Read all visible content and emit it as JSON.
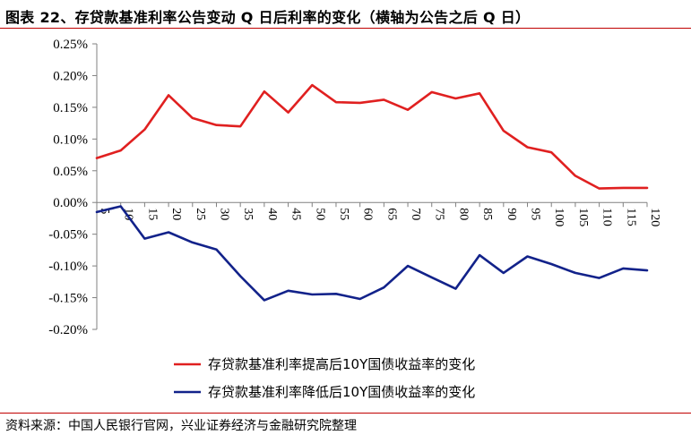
{
  "title": "图表 22、存贷款基准利率公告变动 Q 日后利率的变化（横轴为公告之后 Q 日）",
  "source": "资料来源：中国人民银行官网，兴业证券经济与金融研究院整理",
  "colors": {
    "raise": "#e02020",
    "cut": "#12228a",
    "rule": "#c00000"
  },
  "chart_data": {
    "type": "line",
    "x": [
      5,
      10,
      15,
      20,
      25,
      30,
      35,
      40,
      45,
      50,
      55,
      60,
      65,
      70,
      75,
      80,
      85,
      90,
      95,
      100,
      105,
      110,
      115,
      120
    ],
    "ylim": [
      -0.2,
      0.25
    ],
    "yticks": [
      0.25,
      0.2,
      0.15,
      0.1,
      0.05,
      0.0,
      -0.05,
      -0.1,
      -0.15,
      -0.2
    ],
    "ytick_labels": [
      "0.25%",
      "0.20%",
      "0.15%",
      "0.10%",
      "0.05%",
      "0.00%",
      "-0.05%",
      "-0.10%",
      "-0.15%",
      "-0.20%"
    ],
    "y_unit": "%",
    "legend_position": "bottom-center",
    "series": [
      {
        "name": "存贷款基准利率提高后10Y国债收益率的变化",
        "values": [
          0.07,
          0.082,
          0.115,
          0.169,
          0.133,
          0.122,
          0.12,
          0.175,
          0.142,
          0.185,
          0.158,
          0.157,
          0.162,
          0.146,
          0.174,
          0.164,
          0.172,
          0.113,
          0.087,
          0.079,
          0.042,
          0.022,
          0.023,
          0.023
        ]
      },
      {
        "name": "存贷款基准利率降低后10Y国债收益率的变化",
        "values": [
          -0.015,
          -0.006,
          -0.057,
          -0.047,
          -0.063,
          -0.074,
          -0.116,
          -0.154,
          -0.139,
          -0.145,
          -0.144,
          -0.152,
          -0.134,
          -0.1,
          -0.118,
          -0.136,
          -0.083,
          -0.111,
          -0.085,
          -0.097,
          -0.111,
          -0.119,
          -0.104,
          -0.107
        ]
      }
    ]
  }
}
